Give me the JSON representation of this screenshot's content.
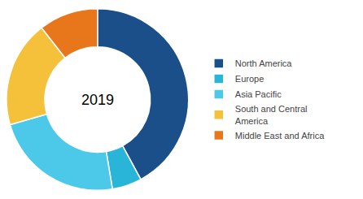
{
  "chart_data": {
    "type": "pie",
    "categories": [
      "North America",
      "Europe",
      "Asia Pacific",
      "South and Central\nAmerica",
      "Middle East and Africa"
    ],
    "values": [
      40,
      5,
      22,
      18,
      10
    ],
    "colors": [
      "#1b4f8a",
      "#29b5d8",
      "#4cc8e8",
      "#f5c03a",
      "#e8761a"
    ],
    "annotations": [
      "2019"
    ],
    "legend": "right"
  }
}
